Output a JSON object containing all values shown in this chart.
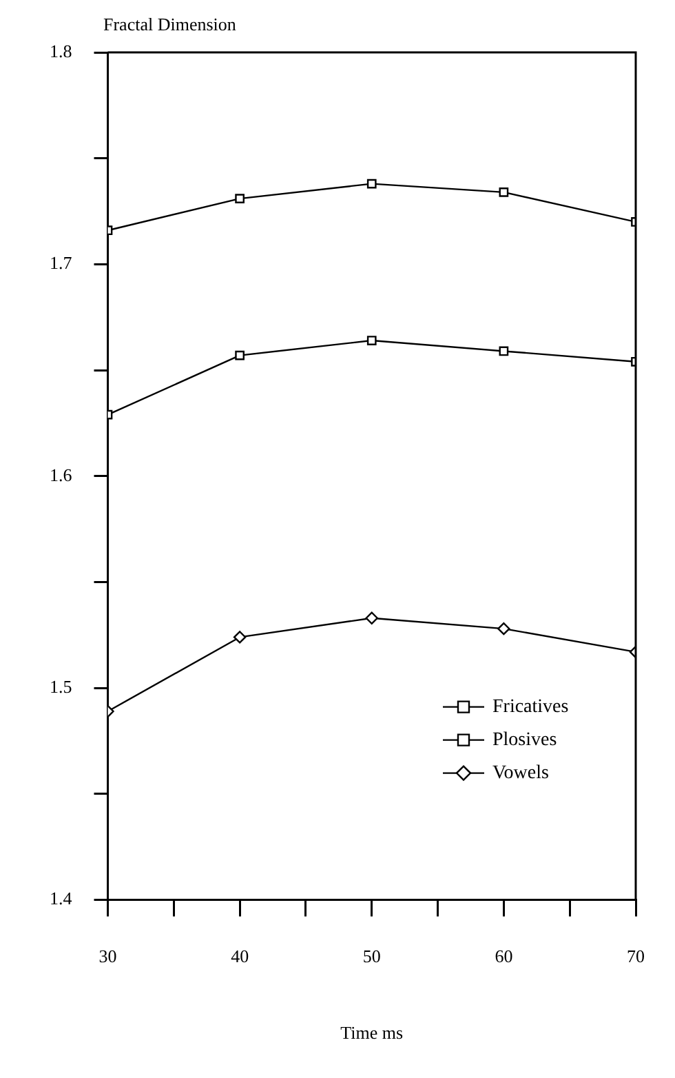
{
  "chart_data": {
    "type": "line",
    "xlabel": "Time ms",
    "ylabel": "Fractal Dimension",
    "x": [
      30,
      40,
      50,
      60,
      70
    ],
    "series": [
      {
        "name": "Fricatives",
        "color": "#000000",
        "marker": "square",
        "values": [
          1.716,
          1.731,
          1.738,
          1.734,
          1.72
        ]
      },
      {
        "name": "Plosives",
        "color": "#000000",
        "marker": "square",
        "values": [
          1.629,
          1.657,
          1.664,
          1.659,
          1.654
        ]
      },
      {
        "name": "Vowels",
        "color": "#000000",
        "marker": "diamond",
        "values": [
          1.489,
          1.524,
          1.533,
          1.528,
          1.517
        ]
      }
    ],
    "xlim": [
      30,
      70
    ],
    "xticks": [
      30,
      {
        "value": 35,
        "label": null
      },
      40,
      {
        "value": 45,
        "label": null
      },
      50,
      {
        "value": 55,
        "label": null
      },
      60,
      {
        "value": 65,
        "label": null
      },
      70
    ],
    "ylim": [
      1.4,
      1.8
    ],
    "yticks": [
      1.4,
      {
        "value": 1.45,
        "label": null
      },
      1.5,
      {
        "value": 1.55,
        "label": null
      },
      1.6,
      {
        "value": 1.65,
        "label": null
      },
      1.7,
      {
        "value": 1.75,
        "label": null
      },
      1.8
    ],
    "grid": false,
    "legend": "bottom right",
    "line_style": "solid"
  }
}
